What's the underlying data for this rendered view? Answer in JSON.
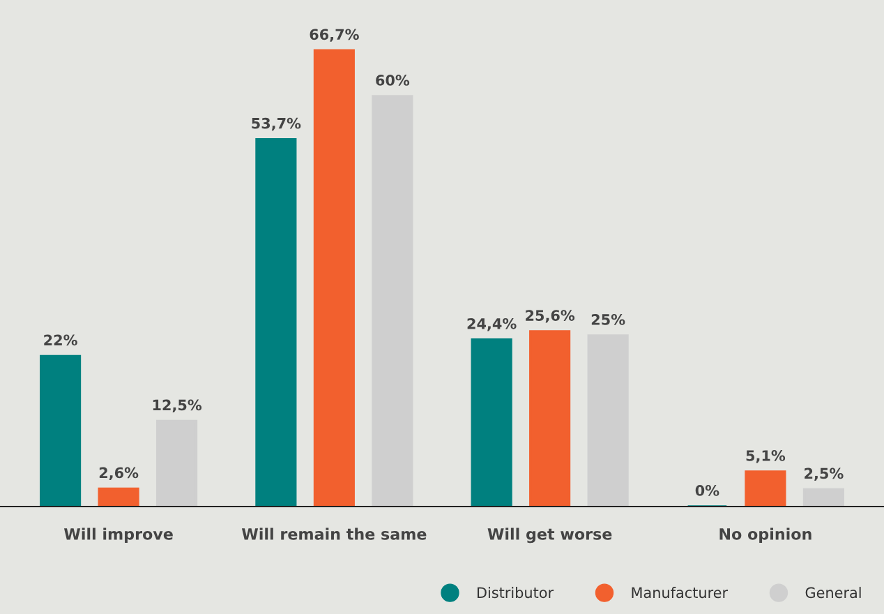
{
  "chart_data": {
    "type": "bar",
    "categories": [
      "Will improve",
      "Will remain the same",
      "Will get worse",
      "No opinion"
    ],
    "tick_labels": "x",
    "legend": "bottom right",
    "series": [
      {
        "name": "Distributor",
        "color": "#00807f",
        "values": [
          22,
          53.7,
          24.4,
          0
        ],
        "value_labels": [
          "22%",
          "53,7%",
          "24,4%",
          "0%"
        ]
      },
      {
        "name": "Manufacturer",
        "color": "#f2602e",
        "values": [
          2.6,
          66.7,
          25.6,
          5.1
        ],
        "value_labels": [
          "2,6%",
          "66,7%",
          "25,6%",
          "5,1%"
        ]
      },
      {
        "name": "General",
        "color": "#cfcfcf",
        "values": [
          12.5,
          60,
          25,
          2.5
        ],
        "value_labels": [
          "12,5%",
          "60%",
          "25%",
          "2,5%"
        ]
      }
    ]
  }
}
